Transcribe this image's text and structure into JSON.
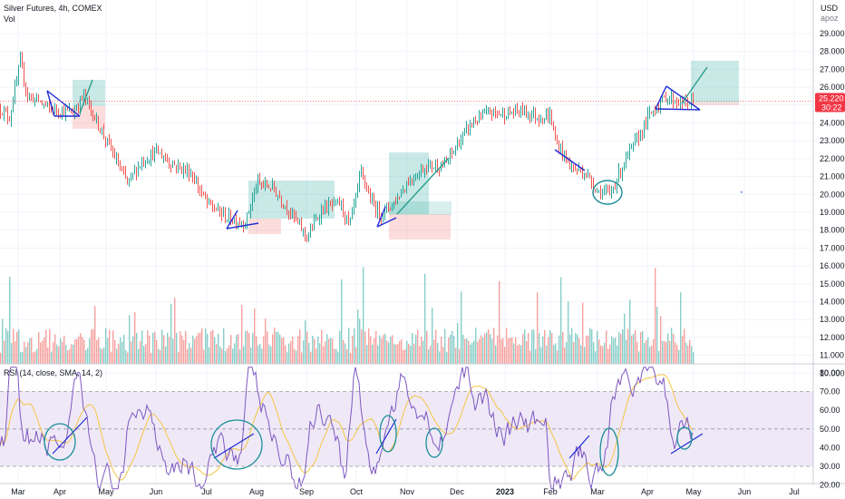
{
  "header": {
    "symbol_line": "Silver Futures, 4h, COMEX",
    "volume_label": "Vol",
    "rsi_label": "RSI (14, close, SMA, 14, 2)"
  },
  "price_scale": {
    "currency": "USD",
    "mode": "apoz",
    "ticks": [
      "29.000",
      "28.000",
      "27.000",
      "26.000",
      "25.000",
      "24.000",
      "23.000",
      "22.000",
      "21.000",
      "20.000",
      "19.000",
      "18.000",
      "17.000",
      "16.000",
      "15.000",
      "14.000",
      "13.000",
      "12.000",
      "11.000",
      "10.000"
    ],
    "last_price": "25.220",
    "countdown": "30:22"
  },
  "rsi_scale": {
    "ticks": [
      "80.00",
      "70.00",
      "60.00",
      "50.00",
      "40.00",
      "30.00",
      "20.00"
    ]
  },
  "time_axis": {
    "labels": [
      "Mar",
      "Apr",
      "May",
      "Jun",
      "Jul",
      "Aug",
      "Sep",
      "Oct",
      "Nov",
      "Dec",
      "2023",
      "Feb",
      "Mar",
      "Apr",
      "May",
      "Jun",
      "Jul"
    ]
  },
  "colors": {
    "up": "#26a69a",
    "down": "#ef5350",
    "rsi_line": "#7e57c2",
    "rsi_ma": "#f5c542",
    "rsi_band": "#ede7f6",
    "drawing_blue": "#1e2bd6",
    "drawing_teal": "#1a8f99",
    "position_profit": "#26a69a",
    "position_loss": "#ef5350",
    "last_price_bg": "#f23645"
  },
  "chart_data": [
    {
      "type": "line",
      "title": "Silver Futures, 4h, COMEX",
      "ylim": [
        10,
        30
      ],
      "xlabel": "",
      "ylabel": "USD",
      "x": [
        "Mar",
        "Apr",
        "May",
        "Jun",
        "Jul",
        "Aug",
        "Sep",
        "Oct",
        "Nov",
        "Dec",
        "2023",
        "Feb",
        "Mar",
        "Apr",
        "May"
      ],
      "series": [
        {
          "name": "",
          "values": [
            24.8,
            25.0,
            22.0,
            21.5,
            19.0,
            20.5,
            18.0,
            19.5,
            20.0,
            23.0,
            24.2,
            23.5,
            20.5,
            24.5,
            25.2
          ]
        }
      ],
      "last_value": 25.22
    },
    {
      "type": "bar",
      "title": "Vol",
      "note_series": "volume, no scale printed",
      "x": [
        "Mar",
        "Apr",
        "May",
        "Jun",
        "Jul",
        "Aug",
        "Sep",
        "Oct",
        "Nov",
        "Dec",
        "2023",
        "Feb",
        "Mar",
        "Apr",
        "May"
      ],
      "series": [
        {
          "name": "",
          "values": [
            0.5,
            0.6,
            0.5,
            0.4,
            0.5,
            0.6,
            0.5,
            0.5,
            0.7,
            0.5,
            0.5,
            0.6,
            0.7,
            0.6,
            0.5
          ]
        }
      ]
    },
    {
      "type": "line",
      "title": "RSI (14, close, SMA, 14, 2)",
      "ylim": [
        15,
        85
      ],
      "bands": [
        30,
        70
      ],
      "x": [
        "Mar",
        "Apr",
        "May",
        "Jun",
        "Jul",
        "Aug",
        "Sep",
        "Oct",
        "Nov",
        "Dec",
        "2023",
        "Feb",
        "Mar",
        "Apr",
        "May"
      ],
      "series": [
        {
          "name": "",
          "values": [
            55,
            60,
            40,
            45,
            35,
            70,
            40,
            45,
            60,
            55,
            58,
            45,
            30,
            70,
            45
          ]
        }
      ]
    }
  ]
}
